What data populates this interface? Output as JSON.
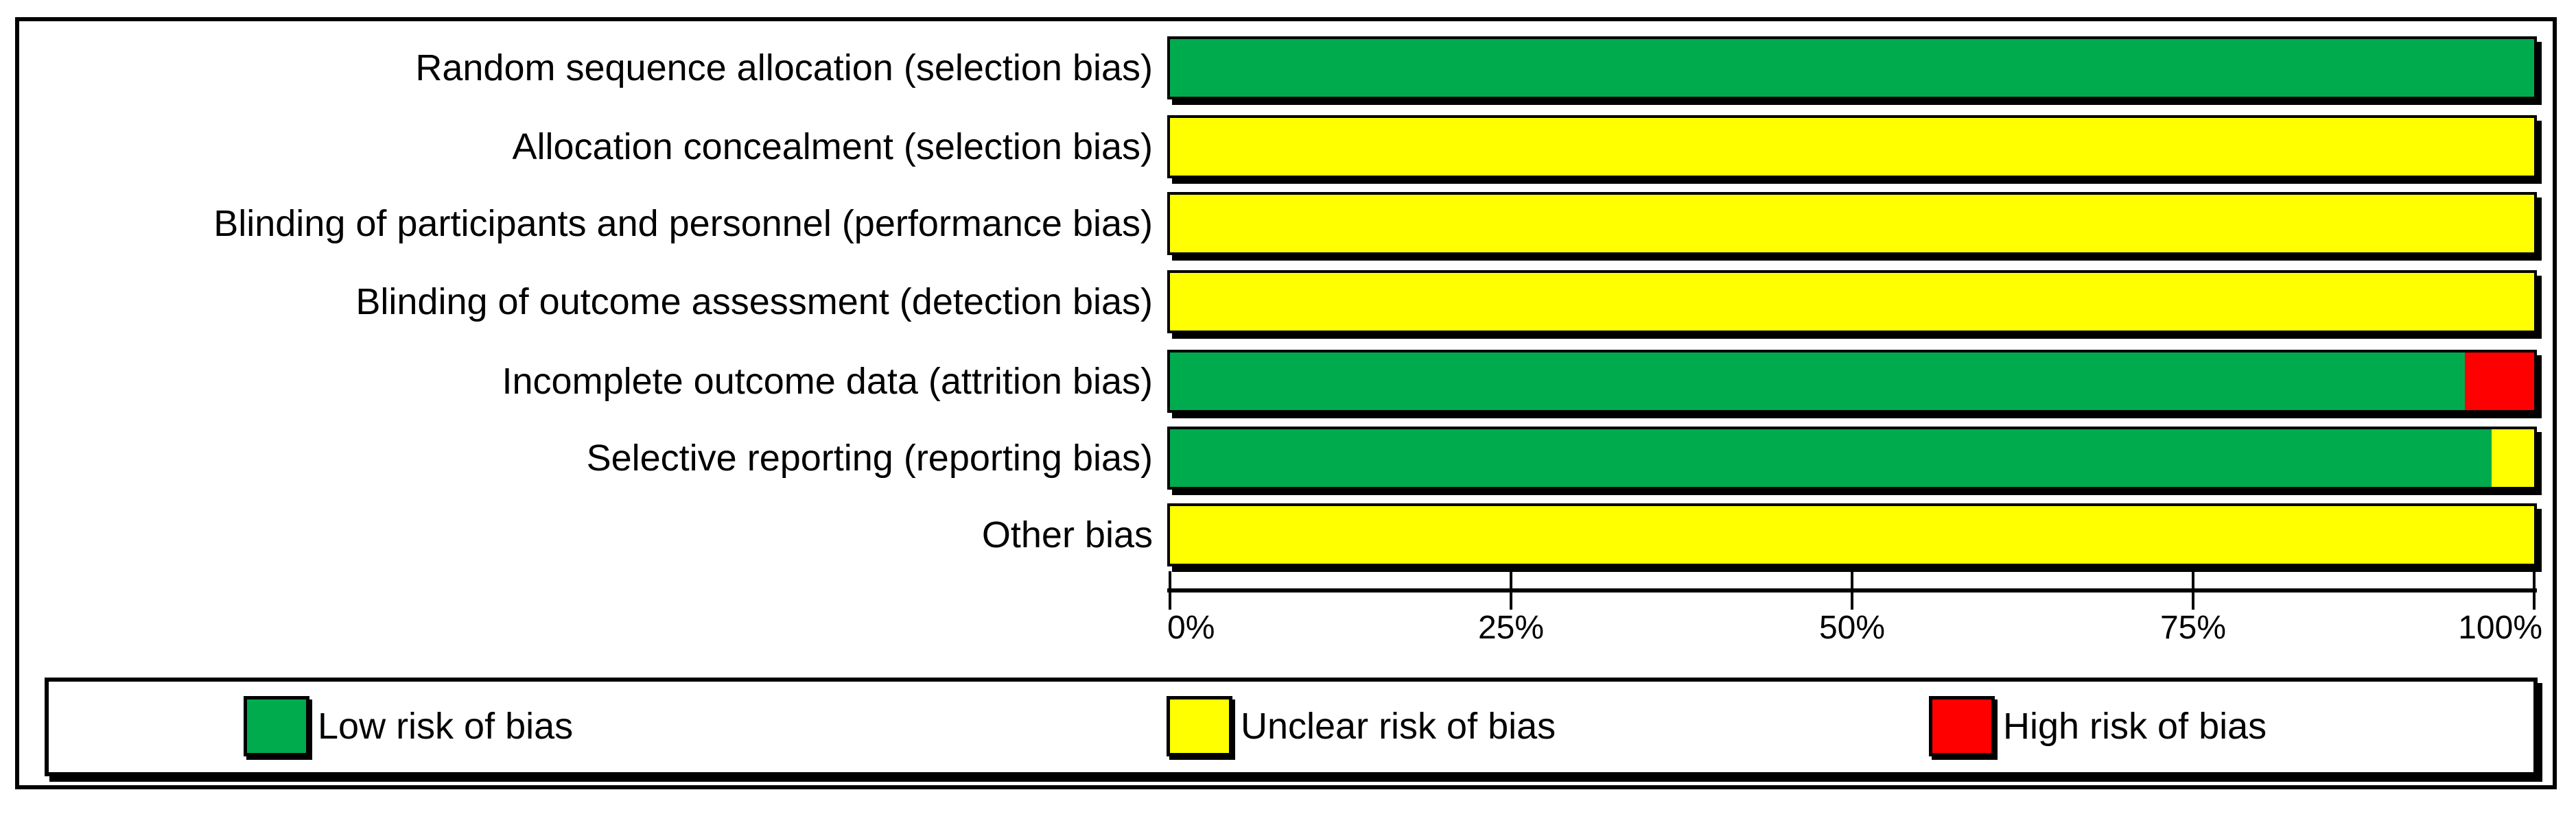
{
  "chart_data": {
    "type": "bar",
    "orientation": "horizontal-stacked",
    "title": "",
    "xlabel": "",
    "ylabel": "",
    "categories": [
      "Random sequence allocation (selection bias)",
      "Allocation concealment (selection bias)",
      "Blinding of participants and personnel (performance bias)",
      "Blinding of outcome assessment (detection bias)",
      "Incomplete outcome data (attrition bias)",
      "Selective reporting (reporting bias)",
      "Other bias"
    ],
    "series": [
      {
        "name": "Low risk of bias",
        "color": "#00AB4D",
        "values": [
          100,
          0,
          0,
          0,
          94.9,
          96.9,
          0
        ]
      },
      {
        "name": "Unclear risk of bias",
        "color": "#FFFF00",
        "values": [
          0,
          100,
          100,
          100,
          0,
          3.1,
          100
        ]
      },
      {
        "name": "High risk of bias",
        "color": "#FF0000",
        "values": [
          0,
          0,
          0,
          0,
          5.1,
          0,
          0
        ]
      }
    ],
    "xlim": [
      0,
      100
    ],
    "x_ticks": [
      0,
      25,
      50,
      75,
      100
    ],
    "x_tick_labels": [
      "0%",
      "25%",
      "50%",
      "75%",
      "100%"
    ],
    "grid": false,
    "legend_position": "bottom"
  },
  "legend": {
    "items": [
      {
        "label": "Low risk of bias",
        "color": "#00AB4D",
        "key": "low"
      },
      {
        "label": "Unclear risk of bias",
        "color": "#FFFF00",
        "key": "unclear"
      },
      {
        "label": "High risk of bias",
        "color": "#FF0000",
        "key": "high"
      }
    ]
  },
  "colors": {
    "low_risk": "#00AB4D",
    "unclear_risk": "#FFFF00",
    "high_risk": "#FF0000",
    "border": "#000000",
    "background": "#FFFFFF"
  }
}
